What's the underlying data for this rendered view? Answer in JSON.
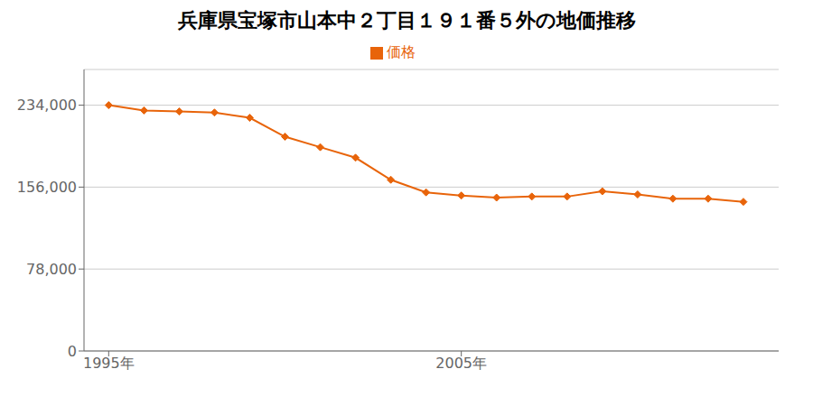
{
  "chart_data": {
    "type": "line",
    "title": "兵庫県宝塚市山本中２丁目１９１番５外の地価推移",
    "x": [
      1995,
      1996,
      1997,
      1998,
      1999,
      2000,
      2001,
      2002,
      2003,
      2004,
      2005,
      2006,
      2007,
      2008,
      2009,
      2010,
      2011,
      2012,
      2013
    ],
    "series": [
      {
        "name": "価格",
        "color": "#e8640a",
        "marker": "diamond",
        "values": [
          234000,
          229000,
          228000,
          227000,
          222000,
          204000,
          194000,
          184000,
          163000,
          151000,
          148000,
          146000,
          147000,
          147000,
          152000,
          149000,
          145000,
          145000,
          142000
        ]
      }
    ],
    "xlim": [
      1994.3,
      2014.0
    ],
    "xticks": [
      {
        "value": 1995,
        "label": "1995年"
      },
      {
        "value": 2005,
        "label": "2005年"
      }
    ],
    "ylim": [
      0,
      268000
    ],
    "yticks": [
      0,
      {
        "value": 78000,
        "label": "78,000"
      },
      {
        "value": 156000,
        "label": "156,000"
      },
      {
        "value": 234000,
        "label": "234,000"
      }
    ],
    "grid": true,
    "legend": "top"
  }
}
